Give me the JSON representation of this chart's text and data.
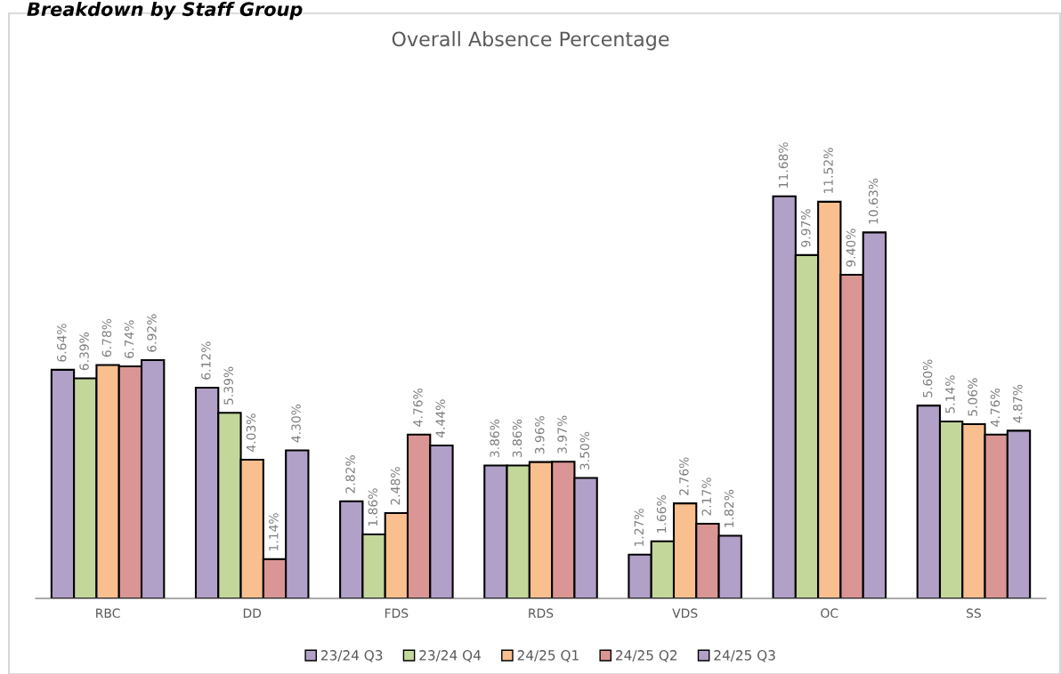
{
  "chart_data": {
    "type": "bar",
    "title": "Overall Absence Percentage",
    "subtitle": "Breakdown by Staff Group",
    "categories": [
      "RBC",
      "DD",
      "FDS",
      "RDS",
      "VDS",
      "OC",
      "SS"
    ],
    "series": [
      {
        "name": "23/24 Q3",
        "color": "#b1a0c7",
        "values": [
          6.64,
          6.12,
          2.82,
          3.86,
          1.27,
          11.68,
          5.6
        ],
        "value_labels": [
          "6.64%",
          "6.12%",
          "2.82%",
          "3.86%",
          "1.27%",
          "11.68%",
          "5.60%"
        ]
      },
      {
        "name": "23/24 Q4",
        "color": "#c4d79b",
        "values": [
          6.39,
          5.39,
          1.86,
          3.86,
          1.66,
          9.97,
          5.14
        ],
        "value_labels": [
          "6.39%",
          "5.39%",
          "1.86%",
          "3.86%",
          "1.66%",
          "9.97%",
          "5.14%"
        ]
      },
      {
        "name": "24/25 Q1",
        "color": "#fabf8f",
        "values": [
          6.78,
          4.03,
          2.48,
          3.96,
          2.76,
          11.52,
          5.06
        ],
        "value_labels": [
          "6.78%",
          "4.03%",
          "2.48%",
          "3.96%",
          "2.76%",
          "11.52%",
          "5.06%"
        ]
      },
      {
        "name": "24/25 Q2",
        "color": "#da9694",
        "values": [
          6.74,
          1.14,
          4.76,
          3.97,
          2.17,
          9.4,
          4.76
        ],
        "value_labels": [
          "6.74%",
          "1.14%",
          "4.76%",
          "3.97%",
          "2.17%",
          "9.40%",
          "4.76%"
        ]
      },
      {
        "name": "24/25 Q3",
        "color": "#b1a0c7",
        "values": [
          6.92,
          4.3,
          4.44,
          3.5,
          1.82,
          10.63,
          4.87
        ],
        "value_labels": [
          "6.92%",
          "4.30%",
          "4.44%",
          "3.50%",
          "1.82%",
          "10.63%",
          "4.87%"
        ]
      }
    ],
    "legend": "bottom"
  }
}
